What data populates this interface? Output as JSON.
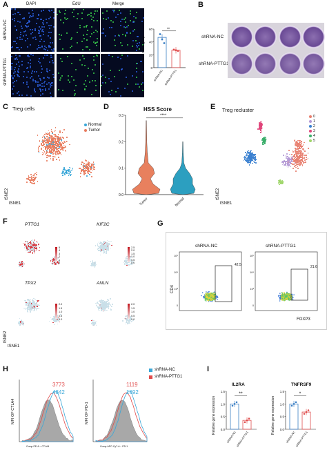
{
  "panels": {
    "A": {
      "letter": "A",
      "columns": [
        "DAPI",
        "EdU",
        "Merge"
      ],
      "rows": [
        "shRNA-NC",
        "shRNA-PTTG1"
      ],
      "chart_data": {
        "type": "bar",
        "categories": [
          "shRNA-NC",
          "shRNA-PTTG1"
        ],
        "values": [
          47,
          27
        ],
        "points": [
          [
            52,
            44,
            38
          ],
          [
            28,
            27,
            26
          ]
        ],
        "ylabel": "%EdU+ Cell in group",
        "yticks": [
          "0",
          "20",
          "40",
          "60"
        ],
        "ylim": [
          0,
          60
        ],
        "significance": "**",
        "colors": [
          "#3b7fc4",
          "#e04b4b"
        ]
      }
    },
    "B": {
      "letter": "B",
      "rows": [
        "shRNA-NC",
        "shRNA-PTTG1"
      ]
    },
    "C": {
      "letter": "C",
      "title": "Treg cells",
      "legend": [
        "Normal",
        "Tumor"
      ],
      "legend_colors": [
        "#3aa7d8",
        "#e87b5d"
      ],
      "xlabel": "tSNE1",
      "ylabel": "tSNE2"
    },
    "D": {
      "letter": "D",
      "chart_data": {
        "type": "violin",
        "title": "HSS Score",
        "categories": [
          "Tumor",
          "Normal"
        ],
        "colors": [
          "#e8805e",
          "#2c9fc0"
        ],
        "yticks": [
          "0.0",
          "0.1",
          "0.2",
          "0.3"
        ],
        "ylim": [
          0,
          0.3
        ],
        "significance": "****"
      }
    },
    "E": {
      "letter": "E",
      "title": "Treg recluster",
      "legend": [
        "0",
        "1",
        "2",
        "3",
        "4",
        "5"
      ],
      "legend_colors": [
        "#e88070",
        "#b49ad6",
        "#3a80d0",
        "#e0447a",
        "#3aae6a",
        "#9fd66a"
      ],
      "xlabel": "tSNE1",
      "ylabel": "tSNE2"
    },
    "F": {
      "letter": "F",
      "genes": [
        "PTTG1",
        "KIF2C",
        "TPX2",
        "ANLN"
      ],
      "scale1": [
        "5",
        "4",
        "3",
        "2",
        "1",
        "0"
      ],
      "scale2": [
        "2.5",
        "2.0",
        "1.5",
        "1.0",
        "0.5",
        "0.0"
      ],
      "scale3": [
        "2.0",
        "1.5",
        "1.0",
        "0.5",
        "0.0"
      ],
      "scale4": [
        "2.0",
        "1.5",
        "1.0",
        "0.5",
        "0.0"
      ],
      "xlabel": "tSNE1",
      "ylabel": "tSNE2"
    },
    "G": {
      "letter": "G",
      "samples": [
        "shRNA-NC",
        "shRNA-PTTG1"
      ],
      "gate_values": [
        "42.5",
        "21.6"
      ],
      "xlabel": "FOXP3",
      "ylabel": "CD4"
    },
    "H": {
      "letter": "H",
      "legend": [
        "shRNA-NC",
        "shRNA-PTTG1"
      ],
      "legend_colors": [
        "#3aa7d8",
        "#e04b4b"
      ],
      "left": {
        "red_value": "3773",
        "blue_value": "4842",
        "ylabel": "MFI OF CTLA4",
        "xlabel": "Comp-PE-A :: CTLA4"
      },
      "right": {
        "red_value": "1119",
        "blue_value": "1692",
        "ylabel": "MFI OF PD-1",
        "xlabel": "Comp-APC-Cy7-A :: PD-1"
      }
    },
    "I": {
      "letter": "I",
      "chart_data": [
        {
          "type": "bar",
          "title": "IL2RA",
          "categories": [
            "shRNA-NC",
            "shRNA-PTTG1"
          ],
          "values": [
            1.0,
            0.35
          ],
          "ylim": [
            0,
            1.5
          ],
          "yticks": [
            "0.0",
            "0.5",
            "1.0",
            "1.5"
          ],
          "ylabel": "Relative gene expression",
          "significance": "**"
        },
        {
          "type": "bar",
          "title": "TNFRSF9",
          "categories": [
            "shRNA-NC",
            "shRNA-PTTG1"
          ],
          "values": [
            1.0,
            0.68
          ],
          "ylim": [
            0,
            1.5
          ],
          "yticks": [
            "0.0",
            "0.5",
            "1.0",
            "1.5"
          ],
          "ylabel": "Relative gene expression",
          "significance": "*"
        }
      ]
    }
  }
}
